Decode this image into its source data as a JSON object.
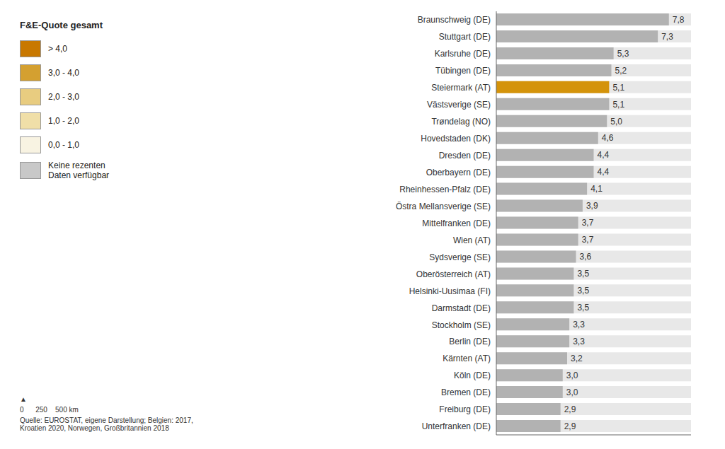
{
  "chart_data": {
    "type": "bar",
    "orientation": "horizontal",
    "categories": [
      "Braunschweig (DE)",
      "Stuttgart (DE)",
      "Karlsruhe (DE)",
      "Tübingen (DE)",
      "Steiermark (AT)",
      "Västsverige (SE)",
      "Trøndelag (NO)",
      "Hovedstaden (DK)",
      "Dresden (DE)",
      "Oberbayern (DE)",
      "Rheinhessen-Pfalz (DE)",
      "Östra Mellansverige (SE)",
      "Mittelfranken (DE)",
      "Wien (AT)",
      "Sydsverige (SE)",
      "Oberösterreich (AT)",
      "Helsinki-Uusimaa (FI)",
      "Darmstadt (DE)",
      "Stockholm (SE)",
      "Berlin (DE)",
      "Kärnten (AT)",
      "Köln (DE)",
      "Bremen (DE)",
      "Freiburg (DE)",
      "Unterfranken (DE)"
    ],
    "values": [
      7.8,
      7.3,
      5.3,
      5.2,
      5.1,
      5.1,
      5.0,
      4.6,
      4.4,
      4.4,
      4.1,
      3.9,
      3.7,
      3.7,
      3.6,
      3.5,
      3.5,
      3.5,
      3.3,
      3.3,
      3.2,
      3.0,
      3.0,
      2.9,
      2.9
    ],
    "value_labels": [
      "7,8",
      "7,3",
      "5,3",
      "5,2",
      "5,1",
      "5,1",
      "5,0",
      "4,6",
      "4,4",
      "4,4",
      "4,1",
      "3,9",
      "3,7",
      "3,7",
      "3,6",
      "3,5",
      "3,5",
      "3,5",
      "3,3",
      "3,3",
      "3,2",
      "3,0",
      "3,0",
      "2,9",
      "2,9"
    ],
    "colors": [
      "#b2b2b2",
      "#b2b2b2",
      "#b2b2b2",
      "#b2b2b2",
      "#d4930a",
      "#b2b2b2",
      "#b2b2b2",
      "#b2b2b2",
      "#b2b2b2",
      "#b2b2b2",
      "#b2b2b2",
      "#b2b2b2",
      "#b2b2b2",
      "#b2b2b2",
      "#b2b2b2",
      "#b2b2b2",
      "#b2b2b2",
      "#b2b2b2",
      "#b2b2b2",
      "#b2b2b2",
      "#b2b2b2",
      "#b2b2b2",
      "#b2b2b2",
      "#b2b2b2",
      "#b2b2b2"
    ],
    "xlim": [
      0,
      8.8
    ],
    "data_labels": true,
    "tick_labels": "y",
    "grid": false,
    "annotations": [
      {
        "text": "F&E-Quote gesamt"
      },
      {
        "text": "> 4,0",
        "color": "#c87800"
      },
      {
        "text": "3,0 - 4,0",
        "color": "#d4a030"
      },
      {
        "text": "2,0 - 3,0",
        "color": "#e8cc80"
      },
      {
        "text": "1,0 - 2,0",
        "color": "#f0dfa8"
      },
      {
        "text": "0,0 - 1,0",
        "color": "#f8f3e2"
      },
      {
        "text": "Keine rezenten\nDaten verfügbar",
        "color": "#c8c8c8"
      },
      {
        "text": "▲"
      },
      {
        "text": "0      250    500 km"
      },
      {
        "text": "Quelle: EUROSTAT, eigene Darstellung; Belgien: 2017,\nKroatien 2020, Norwegen, Großbritannien 2018"
      }
    ]
  }
}
